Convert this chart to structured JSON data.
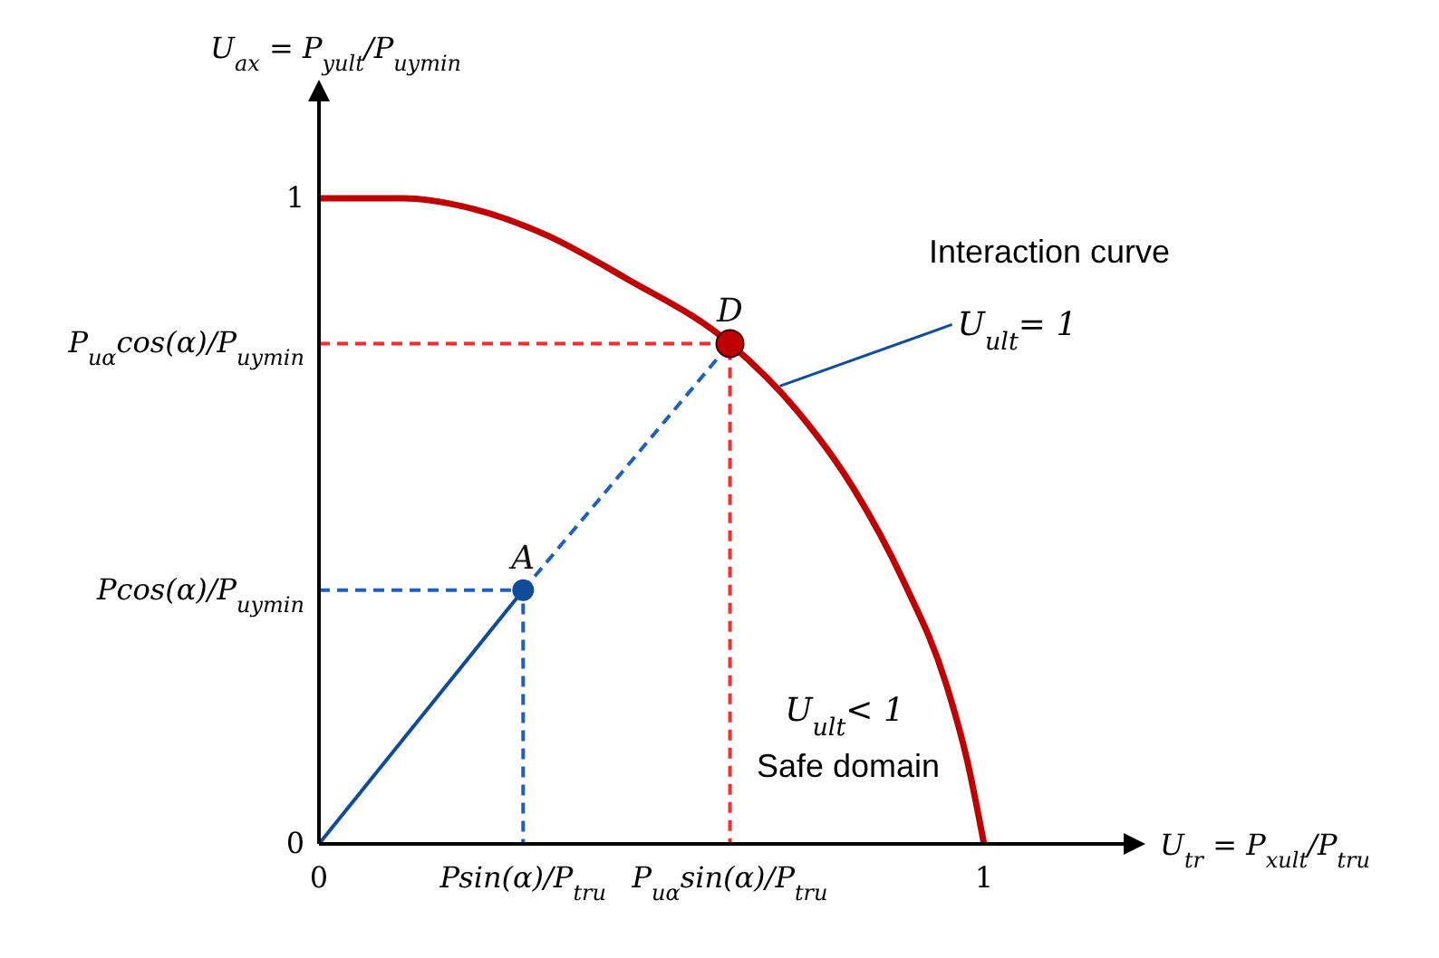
{
  "chart_data": {
    "type": "line",
    "xlabel": "U$_{tr}$ = P$_{xult}$/P$_{tru}$",
    "ylabel": "U$_{ax}$ = P$_{yult}$/P$_{uymin}$",
    "xlim": [
      0,
      1.21
    ],
    "ylim": [
      0,
      1.15
    ],
    "xticks": [
      {
        "value": 0,
        "label": "0"
      },
      {
        "value": 0.307,
        "label": "Psin(α)/P$_{tru}$"
      },
      {
        "value": 0.618,
        "label": "P$_{uα}$sin(α)/P$_{tru}$"
      },
      1
    ],
    "yticks": [
      {
        "value": 0,
        "label": "0"
      },
      {
        "value": 0.393,
        "label": "Pcos(α)/P$_{uymin}$"
      },
      {
        "value": 0.775,
        "label": "P$_{uα}$cos(α)/P$_{uymin}$"
      },
      1
    ],
    "grid": false,
    "legend": false,
    "series": [
      {
        "type": "line",
        "color": "#1f5fbf",
        "line_style": "dashed",
        "x": [
          0,
          0.307,
          0.307
        ],
        "values": [
          0.393,
          0.393,
          0
        ]
      },
      {
        "type": "line",
        "color": "#ff2a2a",
        "line_style": "dashed",
        "x": [
          0,
          0.618,
          0.618
        ],
        "values": [
          0.775,
          0.775,
          0
        ]
      },
      {
        "type": "line",
        "color": "#0f4c9a",
        "line_style": "solid",
        "x": [
          0,
          0.307
        ],
        "values": [
          0,
          0.393
        ]
      },
      {
        "type": "line",
        "color": "#1f5fbf",
        "line_style": "dashed",
        "x": [
          0.307,
          0.618
        ],
        "values": [
          0.393,
          0.775
        ]
      },
      {
        "type": "line",
        "color": "#c00000",
        "line_style": "solid",
        "x": [
          0,
          0.127,
          0.234,
          0.342,
          0.46,
          0.618,
          0.718,
          0.803,
          0.879,
          0.943,
          0.975,
          1.0
        ],
        "values": [
          1,
          1,
          0.983,
          0.943,
          0.877,
          0.775,
          0.672,
          0.552,
          0.407,
          0.248,
          0.128,
          0
        ]
      },
      {
        "type": "scatter",
        "name": "A",
        "color": "#0f4c9a",
        "marker": "circle",
        "x": [
          0.307
        ],
        "values": [
          0.393
        ]
      },
      {
        "type": "scatter",
        "name": "D",
        "color": "#c00000",
        "marker": "circle",
        "x": [
          0.618
        ],
        "values": [
          0.775
        ]
      }
    ],
    "annotations": [
      "Interaction curve",
      {
        "text": "U$_{ult}$= 1",
        "x": 0.693,
        "y": 0.709
      },
      "U$_{ult}$< 1",
      "Safe domain"
    ]
  }
}
